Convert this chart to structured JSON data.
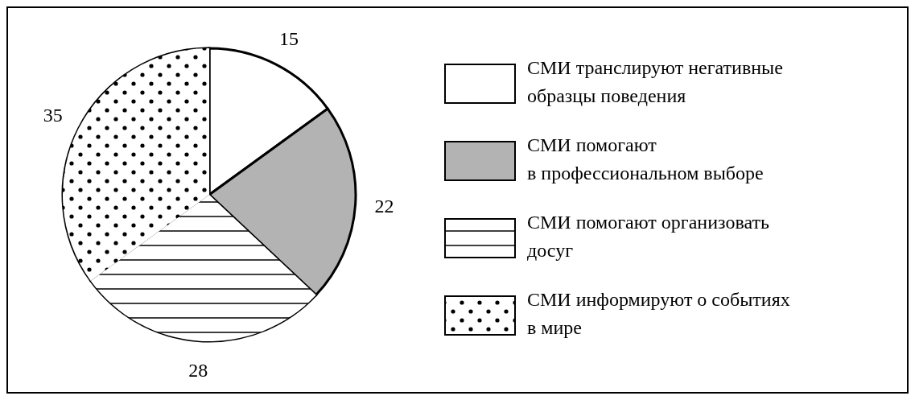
{
  "chart_data": {
    "type": "pie",
    "categories": [
      "СМИ транслируют негативные образцы поведения",
      "СМИ помогают в профессиональном выборе",
      "СМИ помогают организовать досуг",
      "СМИ информируют о событиях в мире"
    ],
    "values": [
      15,
      22,
      28,
      35
    ],
    "colors": [
      "#ffffff",
      "#b3b3b3",
      "#ffffff",
      "#ffffff"
    ],
    "data_labels": true,
    "legend": "right"
  }
}
